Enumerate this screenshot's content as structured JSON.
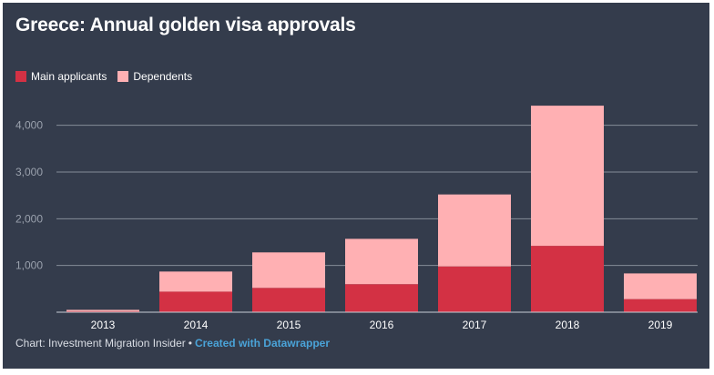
{
  "title": "Greece: Annual golden visa approvals",
  "legend": [
    {
      "label": "Main applicants",
      "color": "#d33144"
    },
    {
      "label": "Dependents",
      "color": "#ffb0b3"
    }
  ],
  "footer": {
    "source": "Chart: Investment Migration Insider",
    "separator": "•",
    "credit": "Created with Datawrapper"
  },
  "chart_data": {
    "type": "bar",
    "stacked": true,
    "title": "Greece: Annual golden visa approvals",
    "categories": [
      "2013",
      "2014",
      "2015",
      "2016",
      "2017",
      "2018",
      "2019"
    ],
    "series": [
      {
        "name": "Main applicants",
        "color": "#d33144",
        "values": [
          20,
          440,
          520,
          600,
          980,
          1420,
          280
        ]
      },
      {
        "name": "Dependents",
        "color": "#ffb0b3",
        "values": [
          30,
          430,
          760,
          970,
          1540,
          3000,
          550
        ]
      }
    ],
    "yticks": [
      1000,
      2000,
      3000,
      4000
    ],
    "ytick_labels": [
      "1,000",
      "2,000",
      "3,000",
      "4,000"
    ],
    "ylim": [
      0,
      4500
    ],
    "grid": true,
    "legend_position": "top-left",
    "xlabel": "",
    "ylabel": ""
  }
}
